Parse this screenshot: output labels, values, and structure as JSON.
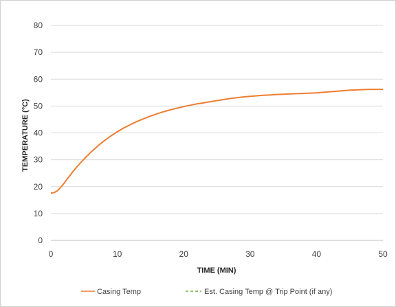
{
  "chart_data": {
    "type": "line",
    "title": "",
    "xlabel": "TIME (MIN)",
    "ylabel": "TEMPERATURE (°C)",
    "xlim": [
      0,
      50
    ],
    "ylim": [
      0,
      80
    ],
    "x_ticks": [
      "0",
      "10",
      "20",
      "30",
      "40",
      "50"
    ],
    "y_ticks": [
      "0",
      "10",
      "20",
      "30",
      "40",
      "50",
      "60",
      "70",
      "80"
    ],
    "grid": "horizontal",
    "legend_position": "bottom",
    "series": [
      {
        "name": "Casing Temp",
        "color": "#ED7D31",
        "style": "solid",
        "x": [
          0,
          0.5,
          1,
          1.5,
          2,
          3,
          4,
          5,
          6,
          7,
          8,
          9,
          10,
          11,
          12,
          13,
          14,
          15,
          16,
          17,
          18,
          19,
          20,
          21,
          22,
          23,
          24,
          25,
          26,
          27,
          28,
          29,
          30,
          31,
          32,
          33,
          34,
          35,
          36,
          37,
          38,
          39,
          40,
          41,
          42,
          43,
          44,
          45,
          46,
          47,
          48,
          49,
          50
        ],
        "y": [
          17.6,
          17.8,
          18.5,
          19.8,
          21.3,
          24.6,
          27.6,
          30.3,
          32.8,
          35.0,
          37.0,
          38.8,
          40.4,
          41.9,
          43.1,
          44.3,
          45.3,
          46.3,
          47.1,
          47.9,
          48.6,
          49.2,
          49.8,
          50.3,
          50.8,
          51.2,
          51.6,
          52.0,
          52.4,
          52.8,
          53.1,
          53.4,
          53.6,
          53.8,
          54.0,
          54.1,
          54.3,
          54.4,
          54.5,
          54.6,
          54.7,
          54.8,
          54.9,
          55.1,
          55.3,
          55.5,
          55.7,
          55.9,
          56.0,
          56.1,
          56.2,
          56.2,
          56.2
        ]
      },
      {
        "name": "Est. Casing Temp @ Trip Point (if any)",
        "color": "#70AD47",
        "style": "dashed",
        "x": [],
        "y": []
      }
    ]
  }
}
